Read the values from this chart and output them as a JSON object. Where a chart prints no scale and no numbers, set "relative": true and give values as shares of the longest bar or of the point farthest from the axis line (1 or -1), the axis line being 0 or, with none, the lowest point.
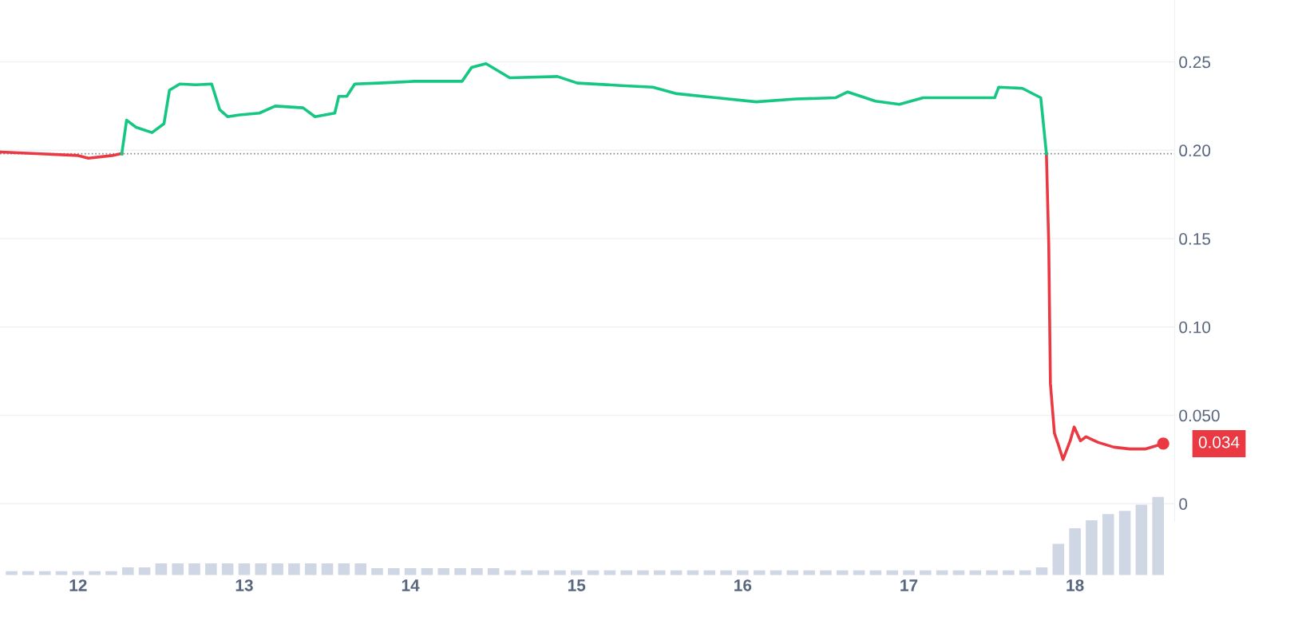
{
  "chart_data": [
    {
      "type": "line",
      "xlim": [
        11.53,
        18.6
      ],
      "ylim": [
        -0.01,
        0.285
      ],
      "yticks": [
        0,
        {
          "value": 0.05,
          "label": "0.050"
        },
        {
          "value": 0.1,
          "label": "0.10"
        },
        0.15,
        {
          "value": 0.2,
          "label": "0.20"
        },
        0.25
      ],
      "grid": "y",
      "tick_labels": "y",
      "line_style": "solid",
      "legend": false,
      "series": [
        {
          "color": "#ea3943",
          "x": [
            11.536,
            11.775,
            12.0,
            12.062,
            12.206,
            12.254,
            12.263,
            15.0,
            17.828,
            17.842,
            17.852,
            17.876,
            17.9,
            17.928,
            17.971,
            17.995,
            18.033,
            18.067,
            18.139,
            18.234,
            18.33,
            18.426,
            18.531
          ],
          "values": [
            0.199,
            0.198,
            0.197,
            0.1955,
            0.197,
            0.198,
            0.198,
            null,
            0.198,
            0.1465,
            0.068,
            0.04,
            0.0333,
            0.025,
            0.0356,
            0.0434,
            0.0356,
            0.0379,
            0.0347,
            0.032,
            0.031,
            0.031,
            0.034
          ]
        },
        {
          "color": "#16c784",
          "x": [
            12.263,
            12.292,
            12.349,
            12.445,
            12.517,
            12.55,
            12.612,
            12.708,
            12.804,
            12.852,
            12.9,
            12.971,
            13.091,
            13.187,
            13.354,
            13.426,
            13.545,
            13.569,
            13.617,
            13.665,
            13.809,
            14.024,
            14.311,
            14.368,
            14.455,
            14.598,
            14.885,
            15.005,
            15.268,
            15.459,
            15.603,
            15.842,
            16.081,
            16.321,
            16.56,
            16.632,
            16.799,
            16.943,
            17.086,
            17.517,
            17.541,
            17.684,
            17.794,
            17.828
          ],
          "values": [
            0.198,
            0.217,
            0.213,
            0.21,
            0.215,
            0.234,
            0.2375,
            0.237,
            0.2375,
            0.223,
            0.219,
            0.22,
            0.221,
            0.225,
            0.224,
            0.219,
            0.221,
            0.2305,
            0.2305,
            0.2375,
            0.238,
            0.239,
            0.239,
            0.2468,
            0.249,
            0.241,
            0.2417,
            0.238,
            0.2366,
            0.2357,
            0.232,
            0.2297,
            0.2274,
            0.229,
            0.2297,
            0.233,
            0.2278,
            0.226,
            0.2297,
            0.2297,
            0.2357,
            0.235,
            0.2297,
            0.198
          ]
        }
      ],
      "ref_lines": [
        {
          "axis": "y",
          "value": 0.198,
          "color": "#888888",
          "line_style": "dotted"
        }
      ],
      "annotations": [
        {
          "text": "0.034",
          "x": 18.531,
          "y": 0.034
        }
      ]
    },
    {
      "type": "bar",
      "relative": true,
      "xlim": [
        11.53,
        18.6
      ],
      "xticks": [
        12,
        13,
        14,
        15,
        16,
        17,
        18
      ],
      "tick_labels": "x",
      "color": "#cfd6e4",
      "x": [
        11.6,
        11.7,
        11.8,
        11.9,
        12.0,
        12.1,
        12.2,
        12.3,
        12.4,
        12.5,
        12.6,
        12.7,
        12.8,
        12.9,
        13.0,
        13.1,
        13.2,
        13.3,
        13.4,
        13.5,
        13.6,
        13.7,
        13.8,
        13.9,
        14.0,
        14.1,
        14.2,
        14.3,
        14.4,
        14.5,
        14.6,
        14.7,
        14.8,
        14.9,
        15.0,
        15.1,
        15.2,
        15.3,
        15.4,
        15.5,
        15.6,
        15.7,
        15.8,
        15.9,
        16.0,
        16.1,
        16.2,
        16.3,
        16.4,
        16.5,
        16.6,
        16.7,
        16.8,
        16.9,
        17.0,
        17.1,
        17.2,
        17.3,
        17.4,
        17.5,
        17.6,
        17.7,
        17.8,
        17.9,
        18.0,
        18.1,
        18.2,
        18.3,
        18.4,
        18.5
      ],
      "values": [
        0.05,
        0.05,
        0.05,
        0.05,
        0.05,
        0.05,
        0.05,
        0.1,
        0.1,
        0.15,
        0.15,
        0.15,
        0.15,
        0.15,
        0.15,
        0.15,
        0.15,
        0.15,
        0.15,
        0.15,
        0.15,
        0.15,
        0.09,
        0.09,
        0.09,
        0.09,
        0.09,
        0.09,
        0.09,
        0.09,
        0.06,
        0.06,
        0.06,
        0.06,
        0.06,
        0.06,
        0.06,
        0.06,
        0.06,
        0.06,
        0.06,
        0.06,
        0.06,
        0.06,
        0.06,
        0.06,
        0.06,
        0.06,
        0.06,
        0.06,
        0.06,
        0.06,
        0.06,
        0.06,
        0.06,
        0.06,
        0.06,
        0.06,
        0.06,
        0.06,
        0.06,
        0.06,
        0.1,
        0.4,
        0.6,
        0.7,
        0.78,
        0.82,
        0.9,
        1.0
      ]
    }
  ]
}
